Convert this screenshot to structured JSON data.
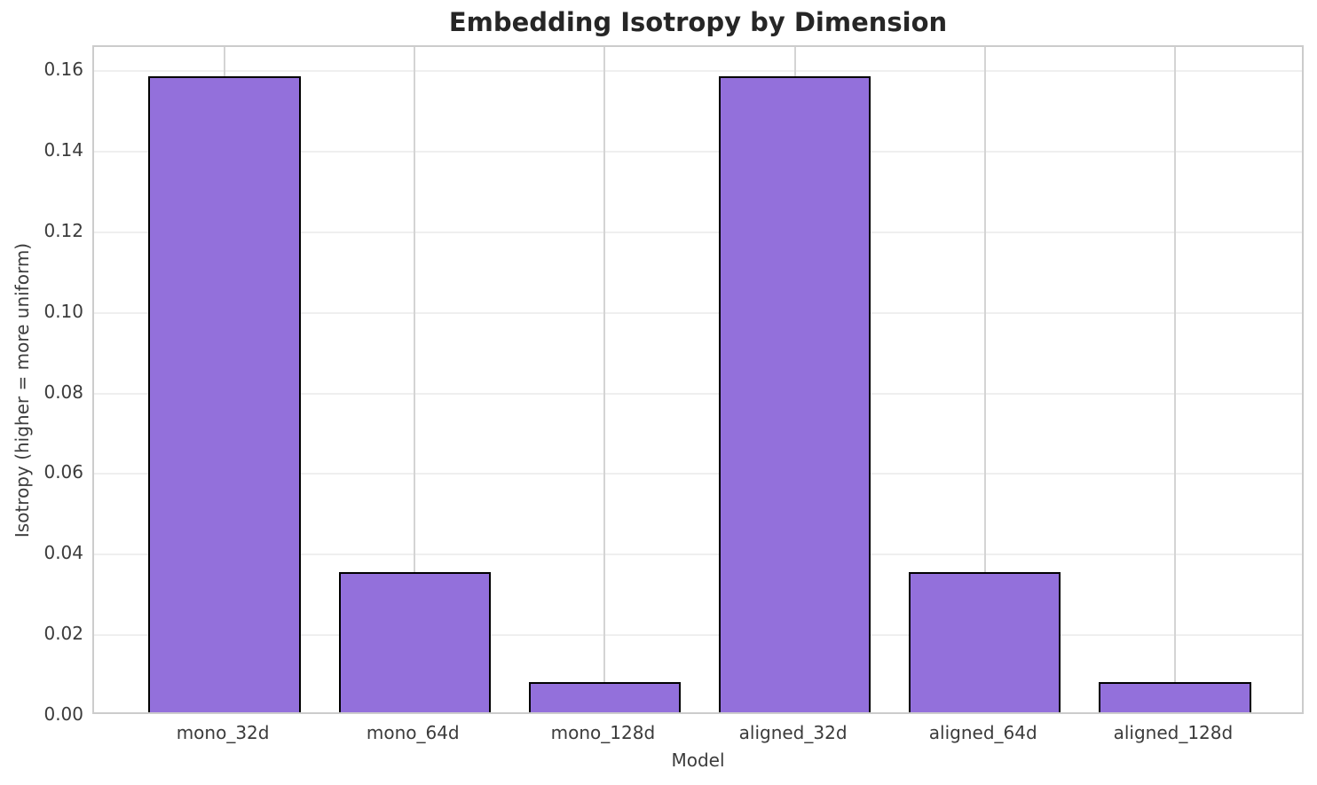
{
  "chart_data": {
    "type": "bar",
    "title": "Embedding Isotropy by Dimension",
    "xlabel": "Model",
    "ylabel": "Isotropy (higher = more uniform)",
    "categories": [
      "mono_32d",
      "mono_64d",
      "mono_128d",
      "aligned_32d",
      "aligned_64d",
      "aligned_128d"
    ],
    "values": [
      0.1578,
      0.0348,
      0.0075,
      0.1578,
      0.0348,
      0.0075
    ],
    "yticks": [
      0.0,
      0.02,
      0.04,
      0.06,
      0.08,
      0.1,
      0.12,
      0.14,
      0.16
    ],
    "ytick_labels": [
      "0.00",
      "0.02",
      "0.04",
      "0.06",
      "0.08",
      "0.10",
      "0.12",
      "0.14",
      "0.16"
    ],
    "ylim": [
      0,
      0.166
    ],
    "grid": "both",
    "legend": "none",
    "bar_width_ratio": 0.8,
    "colors": {
      "bar_fill": "#9370DB",
      "bar_edge": "#000000",
      "grid_h": "#efefef",
      "grid_v": "#d4d4d4",
      "spine": "#cccccc",
      "title_color": "#262626",
      "tick_color": "#3b3b3b"
    }
  }
}
